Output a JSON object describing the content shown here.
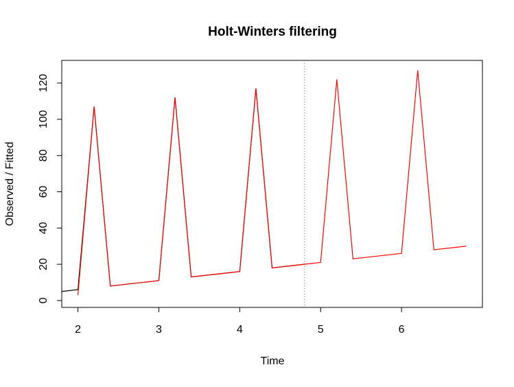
{
  "chart_data": {
    "type": "line",
    "title": "Holt-Winters filtering",
    "x_label": "Time",
    "y_label": "Observed / Fitted",
    "series": [
      {
        "color": "#000000",
        "x": [
          1.8,
          2.0,
          2.2,
          2.4,
          2.6,
          2.8,
          3.0,
          3.2,
          3.4,
          3.6,
          3.8,
          4.0,
          4.2,
          4.4,
          4.6,
          4.8
        ],
        "values": [
          5,
          6,
          107,
          8,
          9,
          10,
          11,
          112,
          13,
          14,
          15,
          16,
          117,
          18,
          19,
          20
        ]
      },
      {
        "color": "#ff0000",
        "x": [
          2.0,
          2.2,
          2.4,
          2.6,
          2.8,
          3.0,
          3.2,
          3.4,
          3.6,
          3.8,
          4.0,
          4.2,
          4.4,
          4.6,
          4.8,
          5.0,
          5.2,
          5.4,
          5.6,
          5.8,
          6.0,
          6.2,
          6.4,
          6.6,
          6.8
        ],
        "values": [
          3,
          107,
          8,
          9,
          10,
          11,
          112,
          13,
          14,
          15,
          16,
          117,
          18,
          19,
          20,
          21,
          122,
          23,
          24,
          25,
          26,
          127,
          28,
          29,
          30
        ]
      }
    ],
    "prediction_start": 4.8,
    "xlim": [
      1.8,
      7.0
    ],
    "xticks": [
      2,
      3,
      4,
      5,
      6
    ],
    "ylim": [
      -3.8,
      132.5
    ],
    "yticks": [
      0,
      20,
      40,
      60,
      80,
      100,
      120
    ]
  }
}
